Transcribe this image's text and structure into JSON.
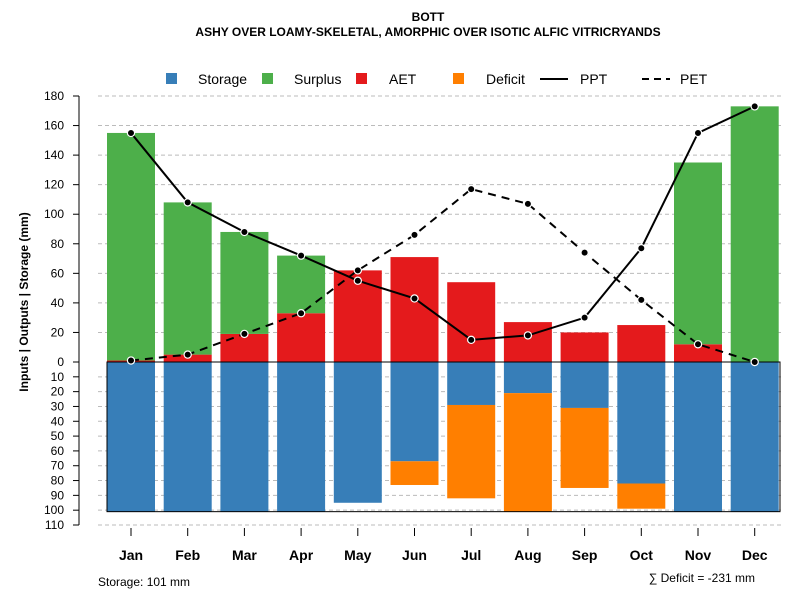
{
  "chart_data": {
    "type": "bar",
    "title": "BOTT",
    "subtitle": "ASHY OVER LOAMY-SKELETAL, AMORPHIC OVER ISOTIC ALFIC VITRICRYANDS",
    "ylabel": "Inputs | Outputs | Storage    (mm)",
    "categories": [
      "Jan",
      "Feb",
      "Mar",
      "Apr",
      "May",
      "Jun",
      "Jul",
      "Aug",
      "Sep",
      "Oct",
      "Nov",
      "Dec"
    ],
    "ylim_upper": [
      0,
      180
    ],
    "ylim_lower": [
      0,
      110
    ],
    "upper_ticks": [
      0,
      20,
      40,
      60,
      80,
      100,
      120,
      140,
      160,
      180
    ],
    "lower_ticks": [
      10,
      20,
      30,
      40,
      50,
      60,
      70,
      80,
      90,
      100,
      110
    ],
    "legend": {
      "storage": "Storage",
      "surplus": "Surplus",
      "aet": "AET",
      "deficit": "Deficit",
      "ppt": "PPT",
      "pet": "PET"
    },
    "colors": {
      "storage": "#377EB8",
      "surplus": "#4DAF4A",
      "aet": "#E41A1C",
      "deficit": "#FF7F00",
      "line": "#000000",
      "grid": "#bbbbbb"
    },
    "series": [
      {
        "name": "AET",
        "values": [
          1,
          5,
          19,
          33,
          62,
          71,
          54,
          27,
          20,
          25,
          12,
          0
        ]
      },
      {
        "name": "Surplus",
        "values": [
          154,
          103,
          69,
          39,
          0,
          0,
          0,
          0,
          0,
          0,
          123,
          173
        ]
      },
      {
        "name": "Storage",
        "values": [
          101,
          101,
          101,
          101,
          95,
          67,
          29,
          21,
          31,
          82,
          101,
          101
        ]
      },
      {
        "name": "Deficit",
        "values": [
          0,
          0,
          0,
          0,
          0,
          16,
          63,
          80,
          54,
          17,
          0,
          0
        ]
      },
      {
        "name": "PPT",
        "values": [
          155,
          108,
          88,
          72,
          55,
          43,
          15,
          18,
          30,
          77,
          155,
          173
        ]
      },
      {
        "name": "PET",
        "values": [
          1,
          5,
          19,
          33,
          62,
          86,
          117,
          107,
          74,
          42,
          12,
          0
        ]
      }
    ],
    "storage_note": "Storage: 101 mm",
    "deficit_note": "∑ Deficit = -231 mm"
  }
}
